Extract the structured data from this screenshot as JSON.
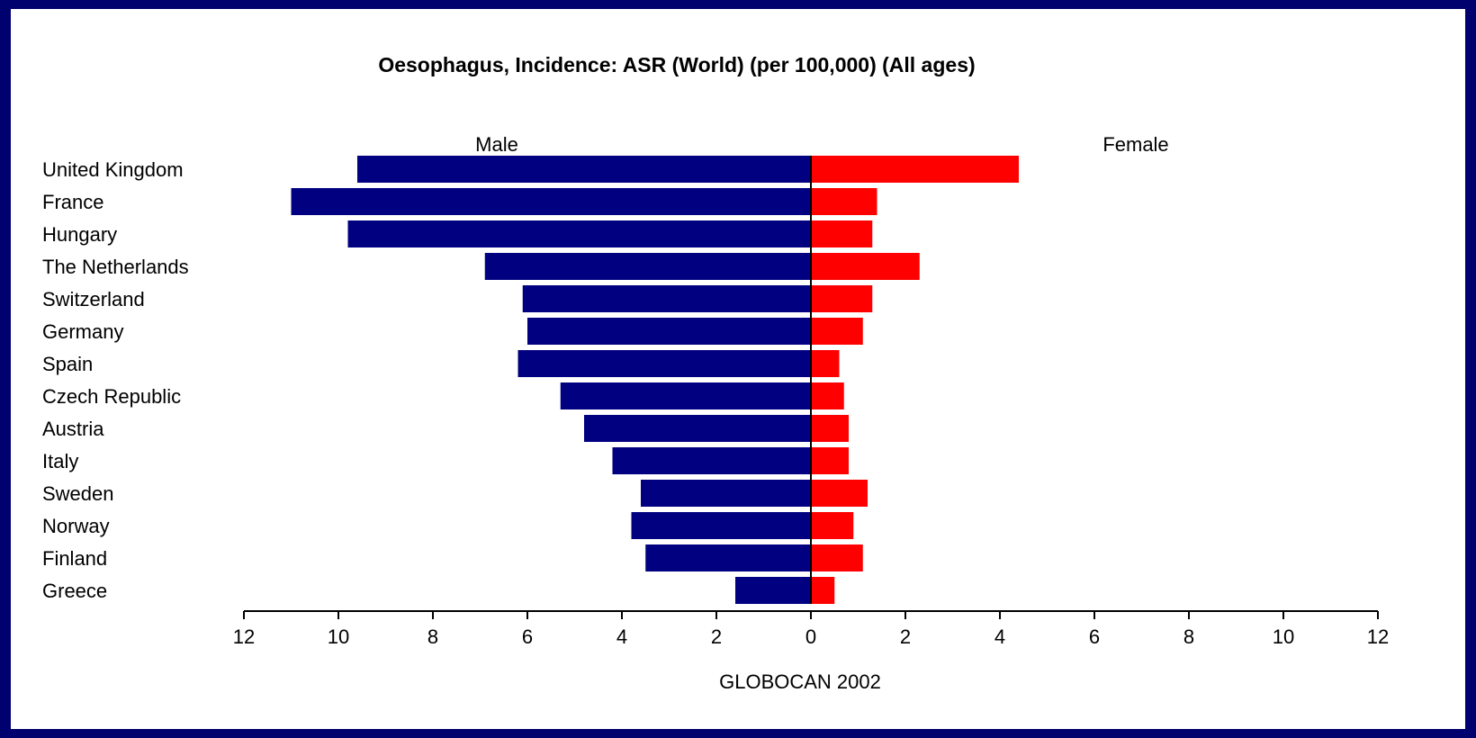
{
  "colors": {
    "frame": "#00006e",
    "panel": "#ffffff",
    "male": "#000080",
    "female": "#ff0000",
    "axis": "#000000"
  },
  "chart_data": {
    "type": "bar",
    "orientation": "horizontal-population-pyramid",
    "title": "Oesophagus, Incidence: ASR (World) (per 100,000) (All ages)",
    "source": "GLOBOCAN 2002",
    "categories": [
      "United Kingdom",
      "France",
      "Hungary",
      "The Netherlands",
      "Switzerland",
      "Germany",
      "Spain",
      "Czech Republic",
      "Austria",
      "Italy",
      "Sweden",
      "Norway",
      "Finland",
      "Greece"
    ],
    "series": [
      {
        "name": "Male",
        "side": "left",
        "values": [
          9.6,
          11.0,
          9.8,
          6.9,
          6.1,
          6.0,
          6.2,
          5.3,
          4.8,
          4.2,
          3.6,
          3.8,
          3.5,
          1.6
        ]
      },
      {
        "name": "Female",
        "side": "right",
        "values": [
          4.4,
          1.4,
          1.3,
          2.3,
          1.3,
          1.1,
          0.6,
          0.7,
          0.8,
          0.8,
          1.2,
          0.9,
          1.1,
          0.5
        ]
      }
    ],
    "xlim": [
      -12,
      12
    ],
    "xticks": [
      12,
      10,
      8,
      6,
      4,
      2,
      0,
      2,
      4,
      6,
      8,
      10,
      12
    ],
    "grid": false,
    "legend": "series labels above bars (Male left, Female right)"
  }
}
